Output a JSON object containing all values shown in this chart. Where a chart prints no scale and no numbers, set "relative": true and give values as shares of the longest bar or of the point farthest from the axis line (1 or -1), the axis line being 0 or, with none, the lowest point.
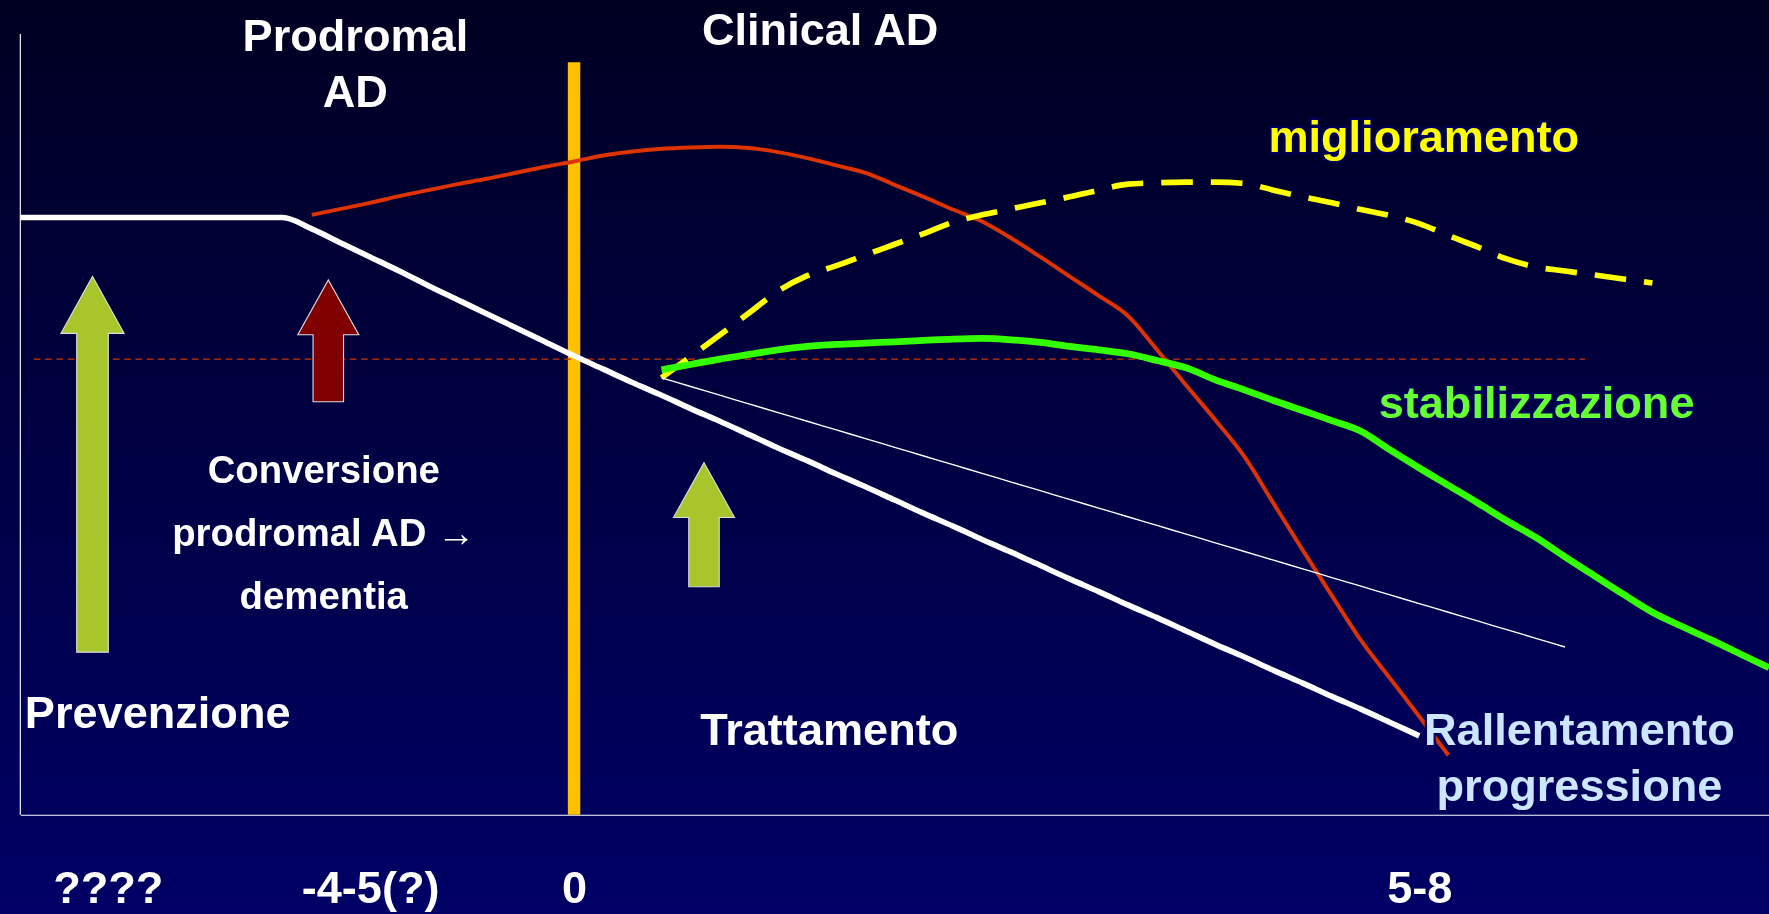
{
  "chart_data": {
    "type": "line",
    "relative": true,
    "legend": false,
    "grid": false,
    "marker": "none",
    "categories": [
      null,
      null,
      null,
      "????",
      null,
      null,
      null,
      null,
      null,
      null,
      null,
      null,
      "-4-5(?)",
      null,
      null,
      null,
      null,
      null,
      null,
      "0",
      null,
      null,
      null,
      null,
      null,
      null,
      null,
      null,
      null,
      null,
      null,
      null,
      null,
      null,
      null,
      null,
      null,
      null,
      null,
      null,
      null,
      null,
      null,
      null,
      null,
      null,
      null,
      null,
      "5-8",
      null,
      null,
      null,
      null,
      null,
      null,
      null,
      null,
      null,
      null,
      null,
      null
    ],
    "series": [
      {
        "name": "Rallentamento\nprogressione",
        "color": "#ffffff",
        "line_style": "solid",
        "values": [
          0.894,
          0.894,
          0.894,
          0.894,
          0.894,
          0.894,
          0.894,
          0.894,
          0.894,
          0.894,
          0.877,
          0.856,
          0.835,
          0.814,
          0.792,
          0.771,
          0.75,
          0.729,
          0.708,
          0.687,
          0.667,
          0.647,
          0.628,
          0.608,
          0.589,
          0.569,
          0.549,
          0.53,
          0.51,
          0.491,
          0.471,
          0.451,
          0.432,
          0.412,
          0.393,
          0.373,
          0.353,
          0.334,
          0.314,
          0.295,
          0.275,
          0.255,
          0.236,
          0.216,
          0.197,
          0.177,
          0.158,
          0.138,
          0.118,
          null,
          null,
          null,
          null,
          null,
          null,
          null,
          null,
          null,
          null,
          null,
          null
        ]
      },
      {
        "color": "#dd3300",
        "line_style": "solid",
        "values": [
          null,
          null,
          null,
          null,
          null,
          null,
          null,
          null,
          null,
          null,
          0.898,
          0.907,
          0.916,
          0.926,
          0.935,
          0.944,
          0.952,
          0.961,
          0.97,
          0.978,
          0.987,
          0.993,
          0.997,
          0.999,
          1,
          0.998,
          0.992,
          0.983,
          0.972,
          0.961,
          0.943,
          0.925,
          0.906,
          0.888,
          0.863,
          0.835,
          0.806,
          0.777,
          0.747,
          0.696,
          0.643,
          0.591,
          0.536,
          0.466,
          0.396,
          0.328,
          0.261,
          0.204,
          0.147,
          0.089,
          null,
          null,
          null,
          null,
          null,
          null,
          null,
          null,
          null,
          null,
          null
        ]
      },
      {
        "name": "miglioramento",
        "color": "#ffff00",
        "line_style": "dashed",
        "values": [
          null,
          null,
          null,
          null,
          null,
          null,
          null,
          null,
          null,
          null,
          null,
          null,
          null,
          null,
          null,
          null,
          null,
          null,
          null,
          null,
          null,
          null,
          0.654,
          0.686,
          0.718,
          0.751,
          0.784,
          0.807,
          0.822,
          0.838,
          0.854,
          0.87,
          0.887,
          0.898,
          0.907,
          0.916,
          0.925,
          0.935,
          0.944,
          0.946,
          0.947,
          0.947,
          0.945,
          0.935,
          0.925,
          0.916,
          0.906,
          0.897,
          0.885,
          0.867,
          0.85,
          0.832,
          0.82,
          0.814,
          0.808,
          0.802,
          0.796,
          null,
          null,
          null,
          null
        ]
      },
      {
        "name": "stabilizzazione",
        "color": "#33ff00",
        "line_style": "solid",
        "values": [
          null,
          null,
          null,
          null,
          null,
          null,
          null,
          null,
          null,
          null,
          null,
          null,
          null,
          null,
          null,
          null,
          null,
          null,
          null,
          null,
          null,
          null,
          0.666,
          0.674,
          0.682,
          0.689,
          0.696,
          0.701,
          0.704,
          0.706,
          0.708,
          0.71,
          0.712,
          0.713,
          0.711,
          0.707,
          0.701,
          0.696,
          0.69,
          0.68,
          0.669,
          0.651,
          0.636,
          0.62,
          0.605,
          0.59,
          0.574,
          0.546,
          0.519,
          0.493,
          0.467,
          0.44,
          0.415,
          0.386,
          0.358,
          0.33,
          0.303,
          0.282,
          0.262,
          0.241,
          0.22
        ]
      },
      {
        "color": "#ffffff",
        "line_style": "solid",
        "values": [
          null,
          null,
          null,
          null,
          null,
          null,
          null,
          null,
          null,
          null,
          null,
          null,
          null,
          null,
          null,
          null,
          null,
          null,
          null,
          null,
          null,
          null,
          0.654,
          0.641,
          0.628,
          0.615,
          0.602,
          0.589,
          0.576,
          0.563,
          0.55,
          0.537,
          0.524,
          0.511,
          0.498,
          0.485,
          0.472,
          0.459,
          0.446,
          0.433,
          0.42,
          0.407,
          0.394,
          0.381,
          0.368,
          0.355,
          0.342,
          0.329,
          0.316,
          0.303,
          0.29,
          0.277,
          0.264,
          0.251,
          null,
          null,
          null,
          null,
          null,
          null,
          null
        ]
      }
    ],
    "ref_lines": [
      {
        "axis": "x",
        "value": "0",
        "color": "#ffc000",
        "line_style": "solid"
      },
      {
        "axis": "y",
        "value": 0.682,
        "color": "#cc3300",
        "line_style": "dashed"
      }
    ],
    "annotations": [
      "Prodromal\nAD",
      "Clinical AD",
      "Prevenzione",
      "Conversione\nprodromal AD →\ndementia",
      "Trattamento"
    ]
  }
}
